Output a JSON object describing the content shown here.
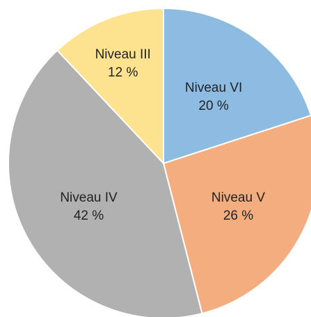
{
  "chart_data": {
    "type": "pie",
    "categories": [
      "Niveau VI",
      "Niveau V",
      "Niveau IV",
      "Niveau III"
    ],
    "values": [
      20,
      26,
      42,
      12
    ],
    "value_labels": [
      "20 %",
      "26 %",
      "42 %",
      "12 %"
    ],
    "colors": [
      "#8dbbe2",
      "#f4ad7e",
      "#b1b1b1",
      "#fde390"
    ]
  }
}
